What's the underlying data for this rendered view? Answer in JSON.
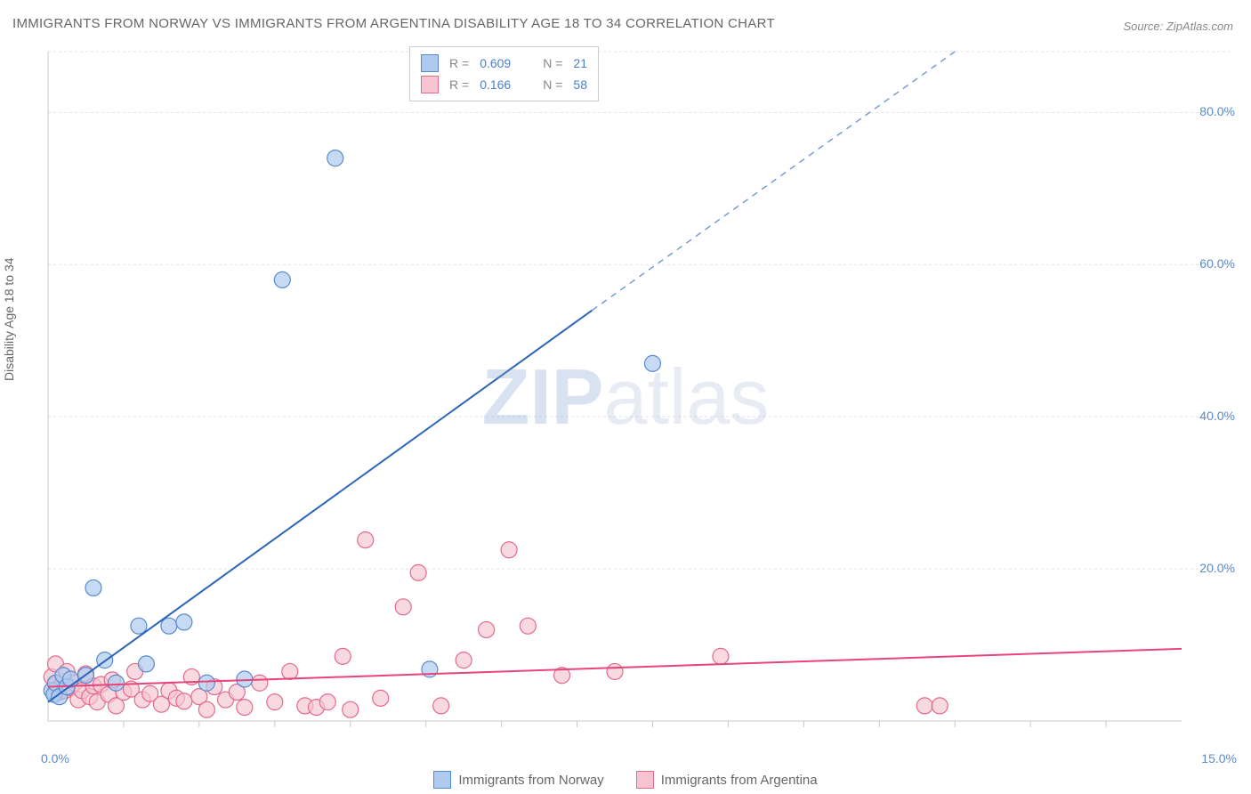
{
  "title": "IMMIGRANTS FROM NORWAY VS IMMIGRANTS FROM ARGENTINA DISABILITY AGE 18 TO 34 CORRELATION CHART",
  "source": "Source: ZipAtlas.com",
  "watermark": "ZIPatlas",
  "y_axis_label": "Disability Age 18 to 34",
  "chart": {
    "type": "scatter",
    "background_color": "#ffffff",
    "grid_color": "#e1e1e1",
    "axis_line_color": "#c8c8c8",
    "tick_mark_color": "#c8c8c8",
    "xlim": [
      0,
      15
    ],
    "ylim": [
      0,
      88
    ],
    "x_ticks_major": [
      0.0,
      15.0
    ],
    "x_tick_labels": [
      "0.0%",
      "15.0%"
    ],
    "x_ticks_minor": [
      1,
      2,
      3,
      4,
      5,
      6,
      7,
      8,
      9,
      10,
      11,
      12,
      13,
      14
    ],
    "y_ticks": [
      20.0,
      40.0,
      60.0,
      80.0
    ],
    "y_tick_labels": [
      "20.0%",
      "40.0%",
      "60.0%",
      "80.0%"
    ],
    "label_fontsize": 14,
    "label_color": "#5a8acc",
    "y_title_fontsize": 14,
    "y_title_color": "#666666"
  },
  "series": [
    {
      "name": "Immigrants from Norway",
      "marker_color_fill": "#aecbef",
      "marker_color_stroke": "#5a8acc",
      "marker_radius": 9,
      "marker_opacity": 0.7,
      "line_color": "#2d65b8",
      "line_width": 2,
      "dash_color": "#6f97d4",
      "R": "0.609",
      "N": "21",
      "trend": {
        "x1": 0,
        "y1": 2.5,
        "x2": 7.2,
        "y2": 54,
        "dash_x2": 12.0,
        "dash_y2": 88.0
      },
      "points": [
        [
          0.05,
          4.0
        ],
        [
          0.08,
          3.5
        ],
        [
          0.1,
          5.0
        ],
        [
          0.15,
          3.2
        ],
        [
          0.2,
          6.0
        ],
        [
          0.25,
          4.5
        ],
        [
          0.3,
          5.5
        ],
        [
          0.5,
          6.0
        ],
        [
          0.6,
          17.5
        ],
        [
          0.75,
          8.0
        ],
        [
          0.9,
          5.0
        ],
        [
          1.2,
          12.5
        ],
        [
          1.3,
          7.5
        ],
        [
          1.6,
          12.5
        ],
        [
          1.8,
          13.0
        ],
        [
          2.1,
          5.0
        ],
        [
          2.6,
          5.5
        ],
        [
          3.1,
          58.0
        ],
        [
          3.8,
          74.0
        ],
        [
          5.05,
          6.8
        ],
        [
          8.0,
          47.0
        ]
      ]
    },
    {
      "name": "Immigrants from Argentina",
      "marker_color_fill": "#f6c5d1",
      "marker_color_stroke": "#e46a8a",
      "marker_radius": 9,
      "marker_opacity": 0.65,
      "line_color": "#e8447a",
      "line_width": 2,
      "R": "0.166",
      "N": "58",
      "trend": {
        "x1": 0,
        "y1": 4.5,
        "x2": 15.0,
        "y2": 9.5
      },
      "points": [
        [
          0.05,
          5.8
        ],
        [
          0.1,
          4.8
        ],
        [
          0.1,
          7.5
        ],
        [
          0.12,
          4.2
        ],
        [
          0.15,
          3.8
        ],
        [
          0.2,
          5.2
        ],
        [
          0.22,
          4.0
        ],
        [
          0.25,
          6.5
        ],
        [
          0.3,
          4.4
        ],
        [
          0.35,
          5.0
        ],
        [
          0.4,
          2.8
        ],
        [
          0.45,
          4.0
        ],
        [
          0.5,
          6.2
        ],
        [
          0.55,
          3.2
        ],
        [
          0.6,
          4.6
        ],
        [
          0.65,
          2.5
        ],
        [
          0.7,
          4.8
        ],
        [
          0.8,
          3.5
        ],
        [
          0.85,
          5.4
        ],
        [
          0.9,
          2.0
        ],
        [
          1.0,
          3.8
        ],
        [
          1.1,
          4.2
        ],
        [
          1.15,
          6.5
        ],
        [
          1.25,
          2.8
        ],
        [
          1.35,
          3.6
        ],
        [
          1.5,
          2.2
        ],
        [
          1.6,
          4.0
        ],
        [
          1.7,
          3.0
        ],
        [
          1.8,
          2.6
        ],
        [
          1.9,
          5.8
        ],
        [
          2.0,
          3.2
        ],
        [
          2.1,
          1.5
        ],
        [
          2.2,
          4.5
        ],
        [
          2.35,
          2.8
        ],
        [
          2.5,
          3.8
        ],
        [
          2.6,
          1.8
        ],
        [
          2.8,
          5.0
        ],
        [
          3.0,
          2.5
        ],
        [
          3.2,
          6.5
        ],
        [
          3.4,
          2.0
        ],
        [
          3.55,
          1.8
        ],
        [
          3.7,
          2.5
        ],
        [
          3.9,
          8.5
        ],
        [
          4.0,
          1.5
        ],
        [
          4.2,
          23.8
        ],
        [
          4.4,
          3.0
        ],
        [
          4.7,
          15.0
        ],
        [
          4.9,
          19.5
        ],
        [
          5.2,
          2.0
        ],
        [
          5.5,
          8.0
        ],
        [
          5.8,
          12.0
        ],
        [
          6.1,
          22.5
        ],
        [
          6.35,
          12.5
        ],
        [
          6.8,
          6.0
        ],
        [
          7.5,
          6.5
        ],
        [
          8.9,
          8.5
        ],
        [
          11.6,
          2.0
        ],
        [
          11.8,
          2.0
        ]
      ]
    }
  ],
  "legend_box": {
    "r_label": "R =",
    "n_label": "N ="
  },
  "bottom_legend": {
    "series1": "Immigrants from Norway",
    "series2": "Immigrants from Argentina"
  }
}
